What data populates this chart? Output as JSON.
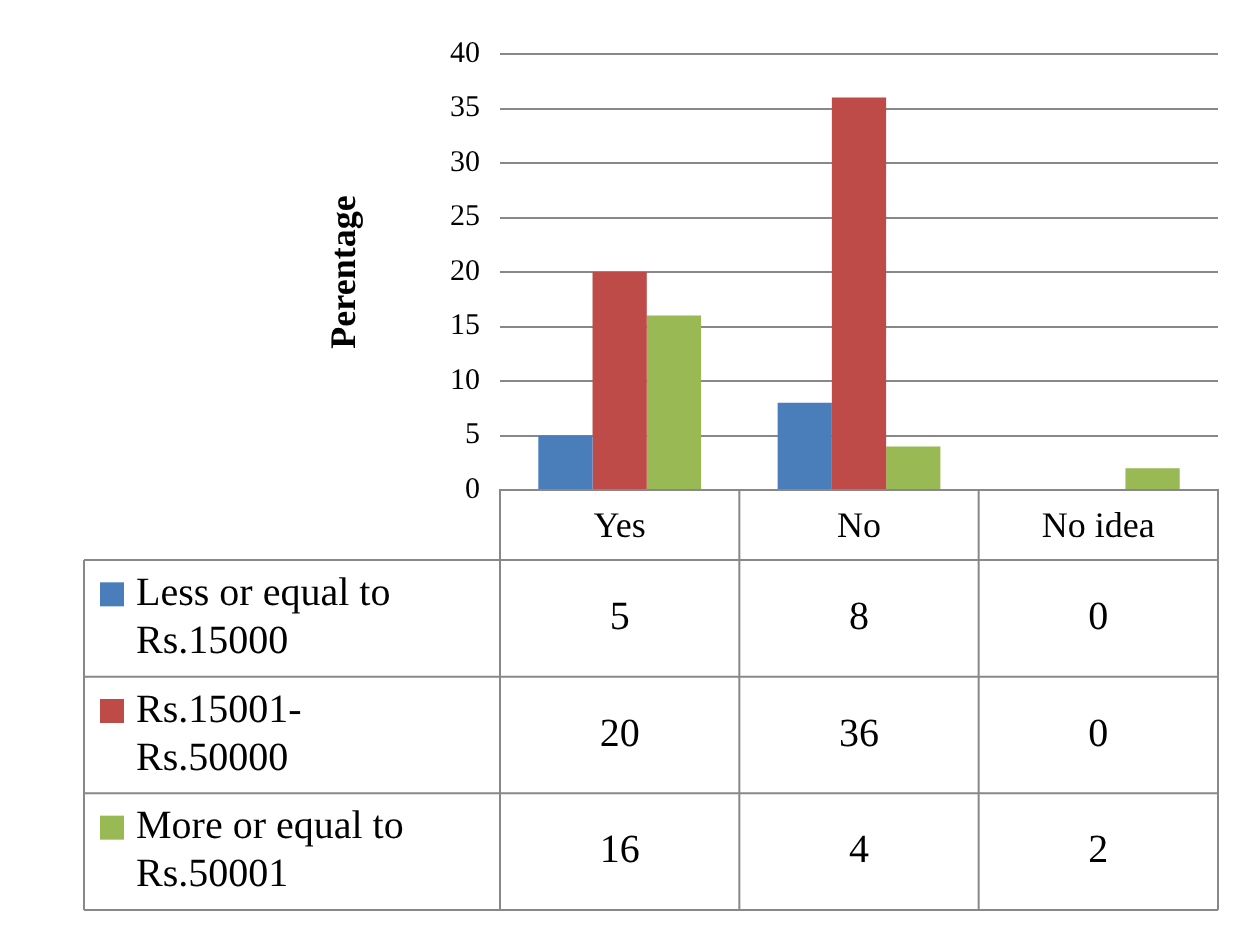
{
  "chart_data": {
    "type": "bar",
    "ylabel": "Perentage",
    "categories": [
      "Yes",
      "No",
      "No idea"
    ],
    "series": [
      {
        "name": "Less or equal to Rs.15000",
        "color": "#4a7ebb",
        "values": [
          5,
          8,
          0
        ]
      },
      {
        "name": "Rs.15001-Rs.50000",
        "color": "#be4b48",
        "values": [
          20,
          36,
          0
        ]
      },
      {
        "name": "More or equal to Rs.50001",
        "color": "#98b954",
        "values": [
          16,
          4,
          2
        ]
      }
    ],
    "ylim": [
      0,
      40
    ],
    "yticks": [
      0,
      5,
      10,
      15,
      20,
      25,
      30,
      35,
      40
    ],
    "grid": "y",
    "legend": "bottom",
    "data_labels": true
  }
}
